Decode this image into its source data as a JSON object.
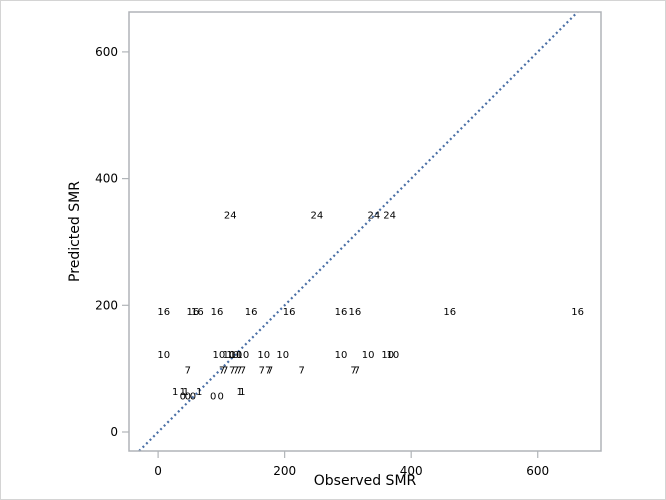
{
  "chart_data": {
    "type": "scatter",
    "title": "",
    "xlabel": "Observed SMR",
    "ylabel": "Predicted SMR",
    "xlim": [
      -46,
      700
    ],
    "ylim": [
      -30,
      663
    ],
    "xticks": [
      0,
      200,
      400,
      600
    ],
    "yticks": [
      0,
      200,
      400,
      600
    ],
    "grid": false,
    "legend": null,
    "reference_line": {
      "type": "diagonal",
      "equation": "y = x",
      "style": "dotted",
      "color": "#4a6fa5"
    },
    "marker": "text-label (group id)",
    "series": [
      {
        "name": "24",
        "y": 343,
        "x": [
          114,
          251,
          341,
          366
        ]
      },
      {
        "name": "16",
        "y": 191,
        "x": [
          9,
          55,
          62,
          93,
          147,
          207,
          289,
          311,
          461,
          663
        ]
      },
      {
        "name": "10",
        "y": 123,
        "x": [
          9,
          96,
          112,
          118,
          123,
          134,
          167,
          197,
          289,
          332,
          363,
          371
        ]
      },
      {
        "name": "7",
        "y": 99,
        "x": [
          47,
          101,
          106,
          117,
          123,
          128,
          134,
          164,
          174,
          177,
          227,
          309,
          314
        ]
      },
      {
        "name": "1",
        "y": 65,
        "x": [
          27,
          39,
          44,
          65,
          129,
          133
        ]
      },
      {
        "name": "0",
        "y": 58,
        "x": [
          39,
          47,
          55,
          87,
          99
        ]
      }
    ]
  },
  "colors": {
    "axis": "#b0b4b8",
    "reference_line": "#4a6fa5",
    "text": "#000000",
    "border": "#d4d4d4"
  }
}
